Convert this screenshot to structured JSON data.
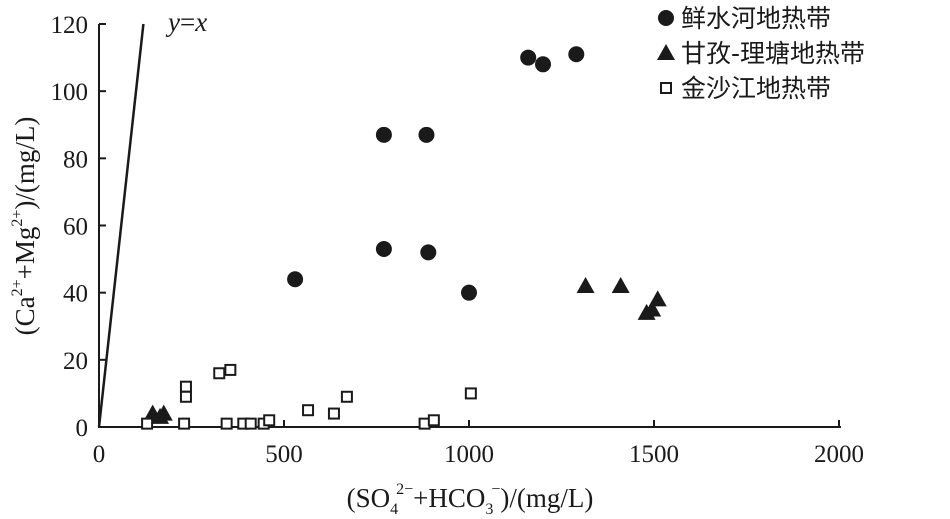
{
  "chart_data": {
    "type": "scatter",
    "xlabel": "(SO4 2- +HCO3 -)/(mg/L)",
    "ylabel": "(Ca 2+ +Mg 2+)/(mg/L)",
    "xlabel_parts": {
      "a": "(SO",
      "a_sub": "4",
      "a_sup": "2−",
      "b": "+HCO",
      "b_sub": "3",
      "b_sup": "−",
      "c": ")/(mg/L)"
    },
    "ylabel_parts": {
      "a": "(Ca",
      "a_sup": "2+",
      "b": "+Mg",
      "b_sup": "2+",
      "c": ")/(mg/L)"
    },
    "xlim": [
      0,
      2000
    ],
    "ylim": [
      0,
      120
    ],
    "x_ticks": [
      "0",
      "500",
      "1000",
      "1500",
      "2000"
    ],
    "y_ticks": [
      "0",
      "20",
      "40",
      "60",
      "80",
      "100",
      "120"
    ],
    "grid": false,
    "legend_position": "top-right",
    "reference_line": {
      "label": "y=x",
      "label_y": "y",
      "label_eq": "=",
      "label_x": "x",
      "x": [
        0,
        120
      ],
      "y": [
        0,
        120
      ]
    },
    "series": [
      {
        "name": "鲜水河地热带",
        "marker": "circle",
        "x": [
          530,
          770,
          885,
          890,
          770,
          1000,
          1160,
          1200,
          1290
        ],
        "y": [
          44,
          53,
          87,
          52,
          87,
          40,
          110,
          108,
          111
        ]
      },
      {
        "name": "甘孜-理塘地热带",
        "marker": "triangle",
        "x": [
          145,
          165,
          175,
          1315,
          1410,
          1480,
          1495,
          1510
        ],
        "y": [
          4,
          3,
          4,
          42,
          42,
          34,
          35,
          38
        ]
      },
      {
        "name": "金沙江地热带",
        "marker": "square-open",
        "x": [
          130,
          230,
          235,
          235,
          325,
          345,
          355,
          390,
          410,
          445,
          460,
          565,
          635,
          670,
          880,
          905,
          1005
        ],
        "y": [
          1,
          1,
          12,
          9,
          16,
          1,
          17,
          1,
          1,
          1,
          2,
          5,
          4,
          9,
          1,
          2,
          10
        ]
      }
    ]
  },
  "colors": {
    "ink": "#1a1a1a",
    "background": "#ffffff"
  }
}
